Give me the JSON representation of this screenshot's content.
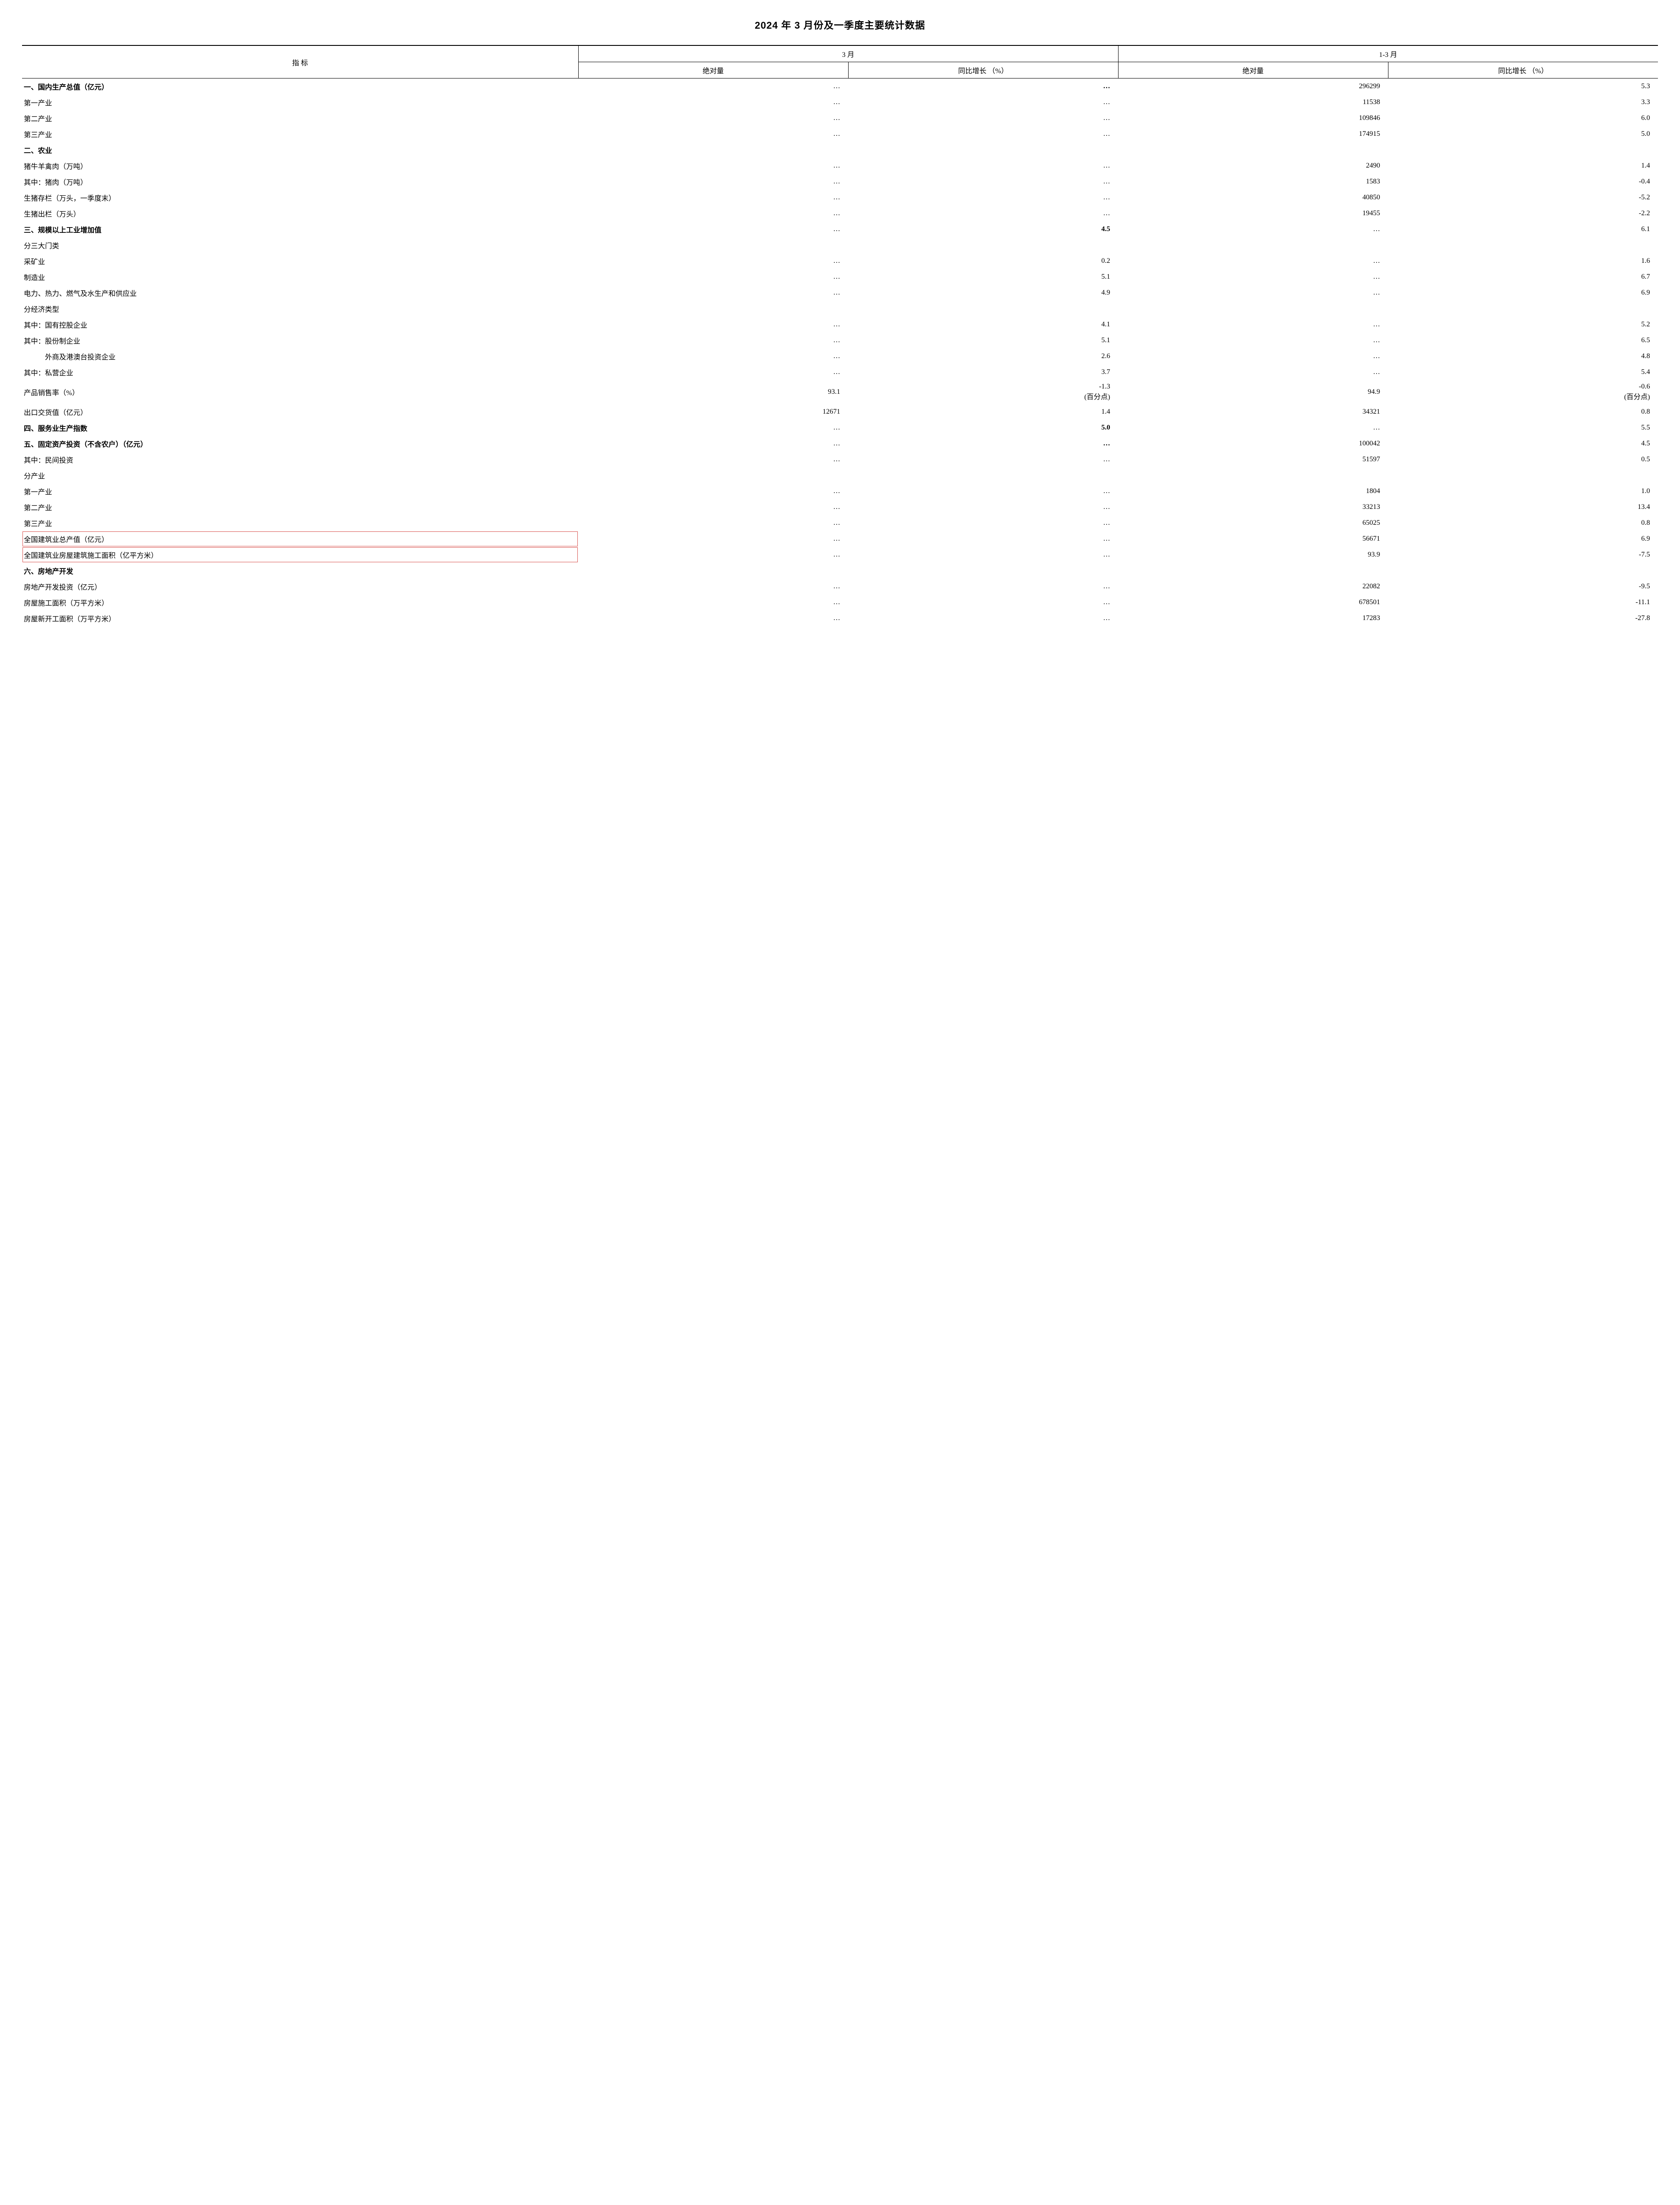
{
  "title": "2024 年 3 月份及一季度主要统计数据",
  "header": {
    "indicator": "指 标",
    "group_march": "3 月",
    "group_q1": "1-3 月",
    "abs": "绝对量",
    "yoy": "同比增长\n（%）"
  },
  "rows": [
    {
      "label": "一、国内生产总值（亿元）",
      "m1": "…",
      "m2": "…",
      "q1": "296299",
      "q2": "5.3",
      "bold": true
    },
    {
      "label": "第一产业",
      "m1": "…",
      "m2": "…",
      "q1": "11538",
      "q2": "3.3"
    },
    {
      "label": "第二产业",
      "m1": "…",
      "m2": "…",
      "q1": "109846",
      "q2": "6.0"
    },
    {
      "label": "第三产业",
      "m1": "…",
      "m2": "…",
      "q1": "174915",
      "q2": "5.0"
    },
    {
      "label": "二、农业",
      "m1": "",
      "m2": "",
      "q1": "",
      "q2": "",
      "bold": true
    },
    {
      "label": "猪牛羊禽肉（万吨）",
      "m1": "…",
      "m2": "…",
      "q1": "2490",
      "q2": "1.4"
    },
    {
      "label": "其中：猪肉（万吨）",
      "m1": "…",
      "m2": "…",
      "q1": "1583",
      "q2": "-0.4"
    },
    {
      "label": "生猪存栏（万头，一季度末）",
      "m1": "…",
      "m2": "…",
      "q1": "40850",
      "q2": "-5.2"
    },
    {
      "label": "生猪出栏（万头）",
      "m1": "…",
      "m2": "…",
      "q1": "19455",
      "q2": "-2.2"
    },
    {
      "label": "三、规模以上工业增加值",
      "m1": "…",
      "m2": "4.5",
      "q1": "…",
      "q2": "6.1",
      "bold": true
    },
    {
      "label": "分三大门类",
      "m1": "",
      "m2": "",
      "q1": "",
      "q2": ""
    },
    {
      "label": "采矿业",
      "m1": "…",
      "m2": "0.2",
      "q1": "…",
      "q2": "1.6"
    },
    {
      "label": "制造业",
      "m1": "…",
      "m2": "5.1",
      "q1": "…",
      "q2": "6.7"
    },
    {
      "label": "电力、热力、燃气及水生产和供应业",
      "m1": "…",
      "m2": "4.9",
      "q1": "…",
      "q2": "6.9"
    },
    {
      "label": "分经济类型",
      "m1": "",
      "m2": "",
      "q1": "",
      "q2": ""
    },
    {
      "label": "其中：国有控股企业",
      "m1": "…",
      "m2": "4.1",
      "q1": "…",
      "q2": "5.2"
    },
    {
      "label": "其中：股份制企业",
      "m1": "…",
      "m2": "5.1",
      "q1": "…",
      "q2": "6.5"
    },
    {
      "label": "　　　外商及港澳台投资企业",
      "m1": "…",
      "m2": "2.6",
      "q1": "…",
      "q2": "4.8"
    },
    {
      "label": "其中：私营企业",
      "m1": "…",
      "m2": "3.7",
      "q1": "…",
      "q2": "5.4"
    },
    {
      "label": "产品销售率（%）",
      "m1": "93.1",
      "m2": "-1.3\n(百分点)",
      "q1": "94.9",
      "q2": "-0.6\n(百分点)"
    },
    {
      "label": "出口交货值（亿元）",
      "m1": "12671",
      "m2": "1.4",
      "q1": "34321",
      "q2": "0.8"
    },
    {
      "label": "四、服务业生产指数",
      "m1": "…",
      "m2": "5.0",
      "q1": "…",
      "q2": "5.5",
      "bold": true
    },
    {
      "label": "五、固定资产投资（不含农户）（亿元）",
      "m1": "…",
      "m2": "…",
      "q1": "100042",
      "q2": "4.5",
      "bold": true
    },
    {
      "label": "其中：民间投资",
      "m1": "…",
      "m2": "…",
      "q1": "51597",
      "q2": "0.5"
    },
    {
      "label": "分产业",
      "m1": "",
      "m2": "",
      "q1": "",
      "q2": ""
    },
    {
      "label": "第一产业",
      "m1": "…",
      "m2": "…",
      "q1": "1804",
      "q2": "1.0"
    },
    {
      "label": "第二产业",
      "m1": "…",
      "m2": "…",
      "q1": "33213",
      "q2": "13.4"
    },
    {
      "label": "第三产业",
      "m1": "…",
      "m2": "…",
      "q1": "65025",
      "q2": "0.8"
    },
    {
      "label": "全国建筑业总产值（亿元）",
      "m1": "…",
      "m2": "…",
      "q1": "56671",
      "q2": "6.9",
      "hl": true
    },
    {
      "label": "全国建筑业房屋建筑施工面积（亿平方米）",
      "m1": "…",
      "m2": "…",
      "q1": "93.9",
      "q2": "-7.5",
      "hl": true
    },
    {
      "label": "六、房地产开发",
      "m1": "",
      "m2": "",
      "q1": "",
      "q2": "",
      "bold": true
    },
    {
      "label": "房地产开发投资（亿元）",
      "m1": "…",
      "m2": "…",
      "q1": "22082",
      "q2": "-9.5"
    },
    {
      "label": "房屋施工面积（万平方米）",
      "m1": "…",
      "m2": "…",
      "q1": "678501",
      "q2": "-11.1"
    },
    {
      "label": "房屋新开工面积（万平方米）",
      "m1": "…",
      "m2": "…",
      "q1": "17283",
      "q2": "-27.8"
    }
  ],
  "style": {
    "title_fontsize": 22,
    "body_fontsize": 16,
    "border_color": "#000000",
    "highlight_border": "#d9534f",
    "background": "#ffffff",
    "text_color": "#000000"
  }
}
